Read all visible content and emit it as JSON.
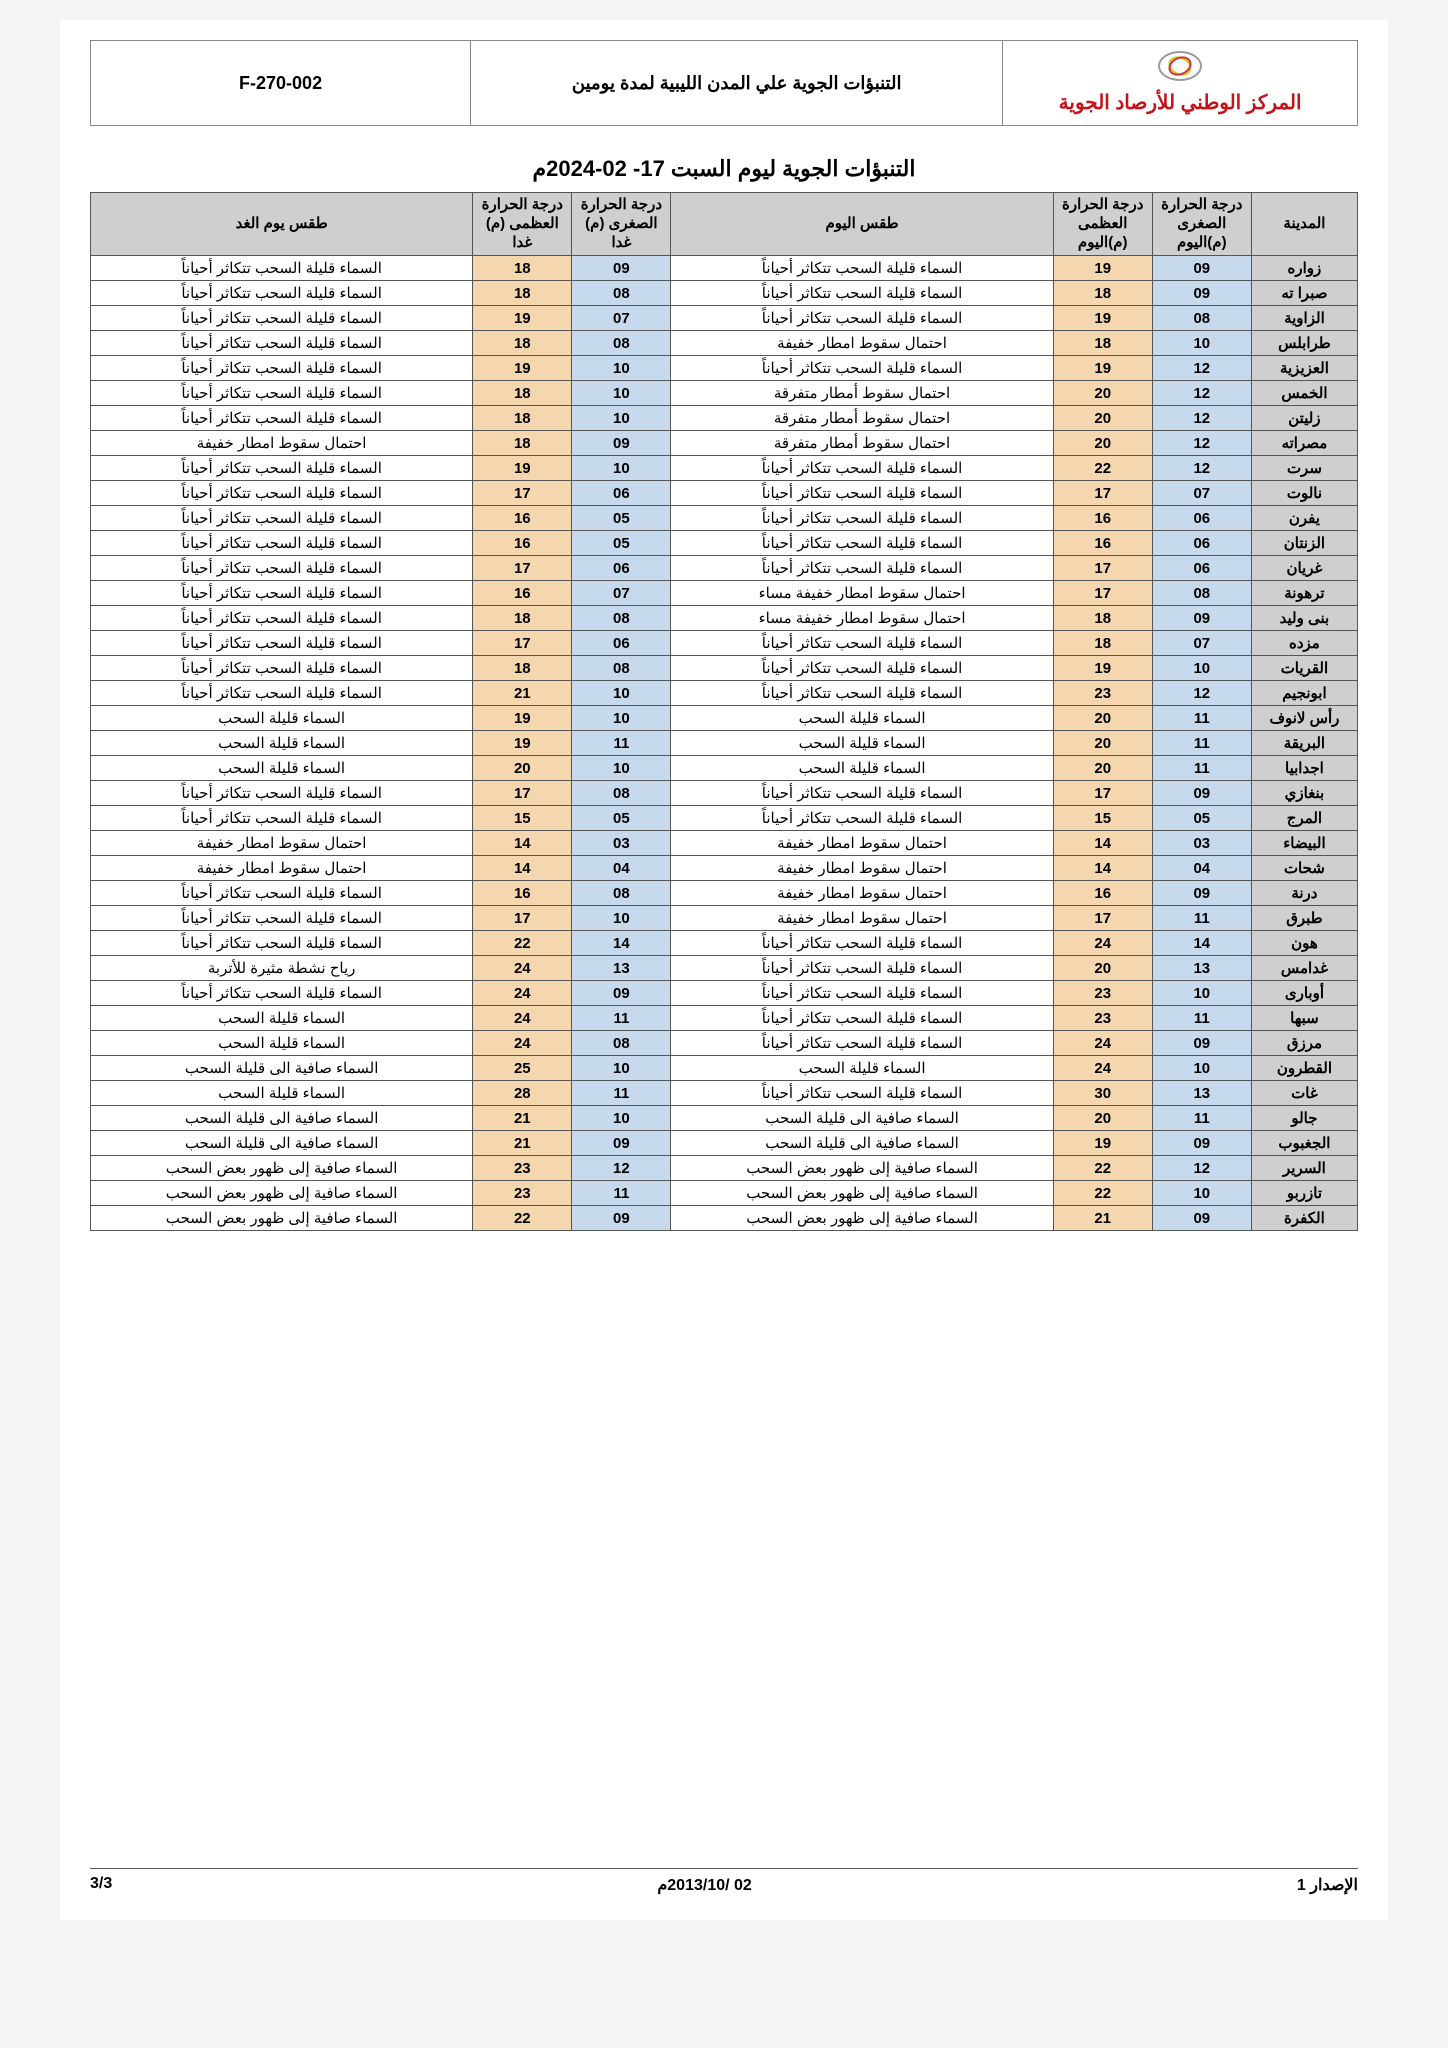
{
  "header": {
    "org_name": "المركز الوطني للأرصاد الجوية",
    "doc_title": "التنبؤات الجوية علي المدن الليبية لمدة يومين",
    "doc_code": "F-270-002"
  },
  "title": "التنبؤات الجوية ليوم السبت  17- 02-2024م",
  "columns": {
    "city": "المدينة",
    "min_today": "درجة الحرارة الصغرى (م)اليوم",
    "max_today": "درجة الحرارة العظمى (م)اليوم",
    "wx_today": "طقس اليوم",
    "min_tmrw": "درجة الحرارة الصغرى (م) غدا",
    "max_tmrw": "درجة الحرارة العظمى (م) غدا",
    "wx_tmrw": "طقس يوم الغد"
  },
  "colors": {
    "header_bg": "#cfcfcf",
    "city_bg": "#cfcfcf",
    "min_bg": "#c7d9ec",
    "max_bg": "#f5d7af",
    "wx_bg": "#ffffff",
    "border": "#555555",
    "org_name": "#c3141a"
  },
  "rows": [
    {
      "city": "زواره",
      "min_t": "09",
      "max_t": "19",
      "wx_t": "السماء قليلة السحب تتكاثر أحياناً",
      "min_m": "09",
      "max_m": "18",
      "wx_m": "السماء قليلة السحب تتكاثر أحياناً"
    },
    {
      "city": "صبرا ته",
      "min_t": "09",
      "max_t": "18",
      "wx_t": "السماء قليلة السحب تتكاثر أحياناً",
      "min_m": "08",
      "max_m": "18",
      "wx_m": "السماء قليلة السحب تتكاثر أحياناً"
    },
    {
      "city": "الزاوية",
      "min_t": "08",
      "max_t": "19",
      "wx_t": "السماء قليلة السحب تتكاثر أحياناً",
      "min_m": "07",
      "max_m": "19",
      "wx_m": "السماء قليلة السحب تتكاثر أحياناً"
    },
    {
      "city": "طرابلس",
      "min_t": "10",
      "max_t": "18",
      "wx_t": "احتمال سقوط امطار خفيفة",
      "min_m": "08",
      "max_m": "18",
      "wx_m": "السماء قليلة السحب تتكاثر أحياناً"
    },
    {
      "city": "العزيزية",
      "min_t": "12",
      "max_t": "19",
      "wx_t": "السماء قليلة السحب تتكاثر أحياناً",
      "min_m": "10",
      "max_m": "19",
      "wx_m": "السماء قليلة السحب تتكاثر أحياناً"
    },
    {
      "city": "الخمس",
      "min_t": "12",
      "max_t": "20",
      "wx_t": "احتمال سقوط أمطار متفرقة",
      "min_m": "10",
      "max_m": "18",
      "wx_m": "السماء قليلة السحب تتكاثر أحياناً"
    },
    {
      "city": "زليتن",
      "min_t": "12",
      "max_t": "20",
      "wx_t": "احتمال سقوط أمطار متفرقة",
      "min_m": "10",
      "max_m": "18",
      "wx_m": "السماء قليلة السحب تتكاثر أحياناً"
    },
    {
      "city": "مصراته",
      "min_t": "12",
      "max_t": "20",
      "wx_t": "احتمال سقوط أمطار متفرقة",
      "min_m": "09",
      "max_m": "18",
      "wx_m": "احتمال سقوط امطار خفيفة"
    },
    {
      "city": "سرت",
      "min_t": "12",
      "max_t": "22",
      "wx_t": "السماء قليلة السحب تتكاثر أحياناً",
      "min_m": "10",
      "max_m": "19",
      "wx_m": "السماء قليلة السحب تتكاثر أحياناً"
    },
    {
      "city": "نالوت",
      "min_t": "07",
      "max_t": "17",
      "wx_t": "السماء قليلة السحب تتكاثر أحياناً",
      "min_m": "06",
      "max_m": "17",
      "wx_m": "السماء قليلة السحب تتكاثر أحياناً"
    },
    {
      "city": "يفرن",
      "min_t": "06",
      "max_t": "16",
      "wx_t": "السماء قليلة السحب تتكاثر أحياناً",
      "min_m": "05",
      "max_m": "16",
      "wx_m": "السماء قليلة السحب تتكاثر أحياناً"
    },
    {
      "city": "الزنتان",
      "min_t": "06",
      "max_t": "16",
      "wx_t": "السماء قليلة السحب تتكاثر أحياناً",
      "min_m": "05",
      "max_m": "16",
      "wx_m": "السماء قليلة السحب تتكاثر أحياناً"
    },
    {
      "city": "غريان",
      "min_t": "06",
      "max_t": "17",
      "wx_t": "السماء قليلة السحب تتكاثر أحياناً",
      "min_m": "06",
      "max_m": "17",
      "wx_m": "السماء قليلة السحب تتكاثر أحياناً"
    },
    {
      "city": "ترهونة",
      "min_t": "08",
      "max_t": "17",
      "wx_t": "احتمال سقوط امطار خفيفة مساء",
      "min_m": "07",
      "max_m": "16",
      "wx_m": "السماء قليلة السحب تتكاثر أحياناً"
    },
    {
      "city": "بنى وليد",
      "min_t": "09",
      "max_t": "18",
      "wx_t": "احتمال سقوط امطار خفيفة مساء",
      "min_m": "08",
      "max_m": "18",
      "wx_m": "السماء قليلة السحب تتكاثر أحياناً"
    },
    {
      "city": "مزده",
      "min_t": "07",
      "max_t": "18",
      "wx_t": "السماء قليلة السحب تتكاثر أحياناً",
      "min_m": "06",
      "max_m": "17",
      "wx_m": "السماء قليلة السحب تتكاثر أحياناً"
    },
    {
      "city": "القريات",
      "min_t": "10",
      "max_t": "19",
      "wx_t": "السماء قليلة السحب تتكاثر أحياناً",
      "min_m": "08",
      "max_m": "18",
      "wx_m": "السماء قليلة السحب تتكاثر أحياناً"
    },
    {
      "city": "ابونجيم",
      "min_t": "12",
      "max_t": "23",
      "wx_t": "السماء قليلة السحب تتكاثر أحياناً",
      "min_m": "10",
      "max_m": "21",
      "wx_m": "السماء قليلة السحب تتكاثر أحياناً"
    },
    {
      "city": "رأس لانوف",
      "min_t": "11",
      "max_t": "20",
      "wx_t": "السماء قليلة السحب",
      "min_m": "10",
      "max_m": "19",
      "wx_m": "السماء قليلة السحب"
    },
    {
      "city": "البريقة",
      "min_t": "11",
      "max_t": "20",
      "wx_t": "السماء قليلة السحب",
      "min_m": "11",
      "max_m": "19",
      "wx_m": "السماء قليلة السحب"
    },
    {
      "city": "اجدابيا",
      "min_t": "11",
      "max_t": "20",
      "wx_t": "السماء قليلة السحب",
      "min_m": "10",
      "max_m": "20",
      "wx_m": "السماء قليلة السحب"
    },
    {
      "city": "بنغازي",
      "min_t": "09",
      "max_t": "17",
      "wx_t": "السماء قليلة السحب تتكاثر أحياناً",
      "min_m": "08",
      "max_m": "17",
      "wx_m": "السماء قليلة السحب تتكاثر أحياناً"
    },
    {
      "city": "المرج",
      "min_t": "05",
      "max_t": "15",
      "wx_t": "السماء قليلة السحب تتكاثر أحياناً",
      "min_m": "05",
      "max_m": "15",
      "wx_m": "السماء قليلة السحب تتكاثر أحياناً"
    },
    {
      "city": "البيضاء",
      "min_t": "03",
      "max_t": "14",
      "wx_t": "احتمال سقوط امطار خفيفة",
      "min_m": "03",
      "max_m": "14",
      "wx_m": "احتمال سقوط امطار خفيفة"
    },
    {
      "city": "شحات",
      "min_t": "04",
      "max_t": "14",
      "wx_t": "احتمال سقوط امطار خفيفة",
      "min_m": "04",
      "max_m": "14",
      "wx_m": "احتمال سقوط امطار خفيفة"
    },
    {
      "city": "درنة",
      "min_t": "09",
      "max_t": "16",
      "wx_t": "احتمال سقوط امطار خفيفة",
      "min_m": "08",
      "max_m": "16",
      "wx_m": "السماء قليلة السحب تتكاثر أحياناً"
    },
    {
      "city": "طبرق",
      "min_t": "11",
      "max_t": "17",
      "wx_t": "احتمال سقوط امطار خفيفة",
      "min_m": "10",
      "max_m": "17",
      "wx_m": "السماء قليلة السحب تتكاثر أحياناً"
    },
    {
      "city": "هون",
      "min_t": "14",
      "max_t": "24",
      "wx_t": "السماء قليلة السحب تتكاثر أحياناً",
      "min_m": "14",
      "max_m": "22",
      "wx_m": "السماء قليلة السحب تتكاثر أحياناً"
    },
    {
      "city": "غدامس",
      "min_t": "13",
      "max_t": "20",
      "wx_t": "السماء قليلة السحب تتكاثر أحياناً",
      "min_m": "13",
      "max_m": "24",
      "wx_m": "رياح نشطة مثيرة للأتربة"
    },
    {
      "city": "أوبارى",
      "min_t": "10",
      "max_t": "23",
      "wx_t": "السماء قليلة السحب تتكاثر أحياناً",
      "min_m": "09",
      "max_m": "24",
      "wx_m": "السماء قليلة السحب تتكاثر أحياناً"
    },
    {
      "city": "سبها",
      "min_t": "11",
      "max_t": "23",
      "wx_t": "السماء قليلة السحب تتكاثر أحياناً",
      "min_m": "11",
      "max_m": "24",
      "wx_m": "السماء قليلة السحب"
    },
    {
      "city": "مرزق",
      "min_t": "09",
      "max_t": "24",
      "wx_t": "السماء قليلة السحب تتكاثر أحياناً",
      "min_m": "08",
      "max_m": "24",
      "wx_m": "السماء قليلة السحب"
    },
    {
      "city": "القطرون",
      "min_t": "10",
      "max_t": "24",
      "wx_t": "السماء قليلة السحب",
      "min_m": "10",
      "max_m": "25",
      "wx_m": "السماء صافية الى قليلة السحب"
    },
    {
      "city": "غات",
      "min_t": "13",
      "max_t": "30",
      "wx_t": "السماء قليلة السحب تتكاثر أحياناً",
      "min_m": "11",
      "max_m": "28",
      "wx_m": "السماء قليلة السحب"
    },
    {
      "city": "جالو",
      "min_t": "11",
      "max_t": "20",
      "wx_t": "السماء صافية الى قليلة السحب",
      "min_m": "10",
      "max_m": "21",
      "wx_m": "السماء صافية الى قليلة السحب"
    },
    {
      "city": "الجغبوب",
      "min_t": "09",
      "max_t": "19",
      "wx_t": "السماء صافية الى قليلة السحب",
      "min_m": "09",
      "max_m": "21",
      "wx_m": "السماء صافية الى قليلة السحب"
    },
    {
      "city": "السرير",
      "min_t": "12",
      "max_t": "22",
      "wx_t": "السماء صافية إلى ظهور بعض السحب",
      "min_m": "12",
      "max_m": "23",
      "wx_m": "السماء صافية إلى ظهور بعض السحب"
    },
    {
      "city": "تازربو",
      "min_t": "10",
      "max_t": "22",
      "wx_t": "السماء صافية إلى ظهور بعض السحب",
      "min_m": "11",
      "max_m": "23",
      "wx_m": "السماء صافية إلى ظهور بعض السحب"
    },
    {
      "city": "الكفرة",
      "min_t": "09",
      "max_t": "21",
      "wx_t": "السماء صافية إلى ظهور بعض السحب",
      "min_m": "09",
      "max_m": "22",
      "wx_m": "السماء صافية إلى ظهور بعض السحب"
    }
  ],
  "footer": {
    "issue": "الإصدار 1",
    "date": "02 /2013/10م",
    "page": "3/3"
  }
}
